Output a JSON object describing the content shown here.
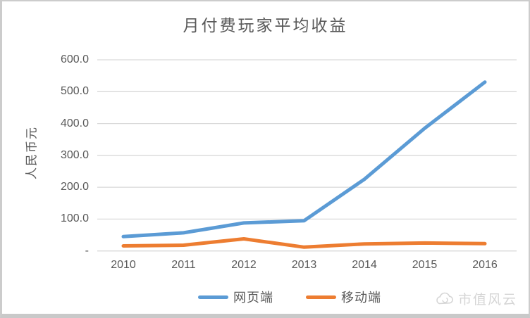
{
  "title": "月付费玩家平均收益",
  "watermark": {
    "text": "市值风云"
  },
  "colors": {
    "web_line": "#5B9BD5",
    "mobile_line": "#ED7D31",
    "gridline": "#D9D9D9",
    "text": "#595959",
    "watermark": "#D5D5D5"
  },
  "chart_data": {
    "type": "line",
    "title": "月付费玩家平均收益",
    "xlabel": "",
    "ylabel": "人民币元",
    "categories": [
      "2010",
      "2011",
      "2012",
      "2013",
      "2014",
      "2015",
      "2016"
    ],
    "series": [
      {
        "name": "网页端",
        "color": "#5B9BD5",
        "values": [
          45,
          57,
          88,
          95,
          225,
          385,
          530
        ]
      },
      {
        "name": "移动端",
        "color": "#ED7D31",
        "values": [
          16,
          18,
          38,
          12,
          22,
          25,
          23
        ]
      }
    ],
    "ylim": [
      0,
      600
    ],
    "ytick_step": 100,
    "ytick_labels": [
      "-",
      "100.0",
      "200.0",
      "300.0",
      "400.0",
      "500.0",
      "600.0"
    ],
    "grid": true,
    "legend_position": "bottom"
  }
}
